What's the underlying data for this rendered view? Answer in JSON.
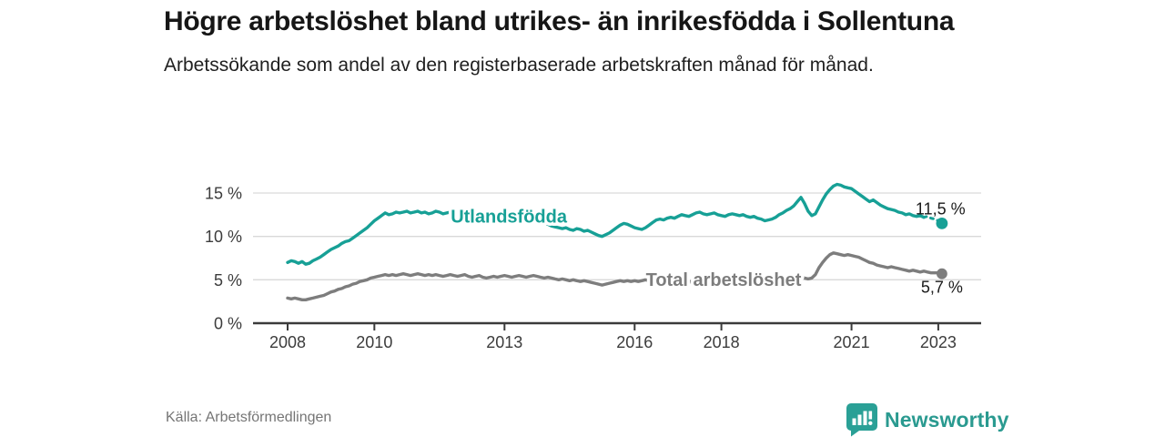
{
  "header": {
    "title": "Högre arbetslöshet bland utrikes- än inrikesfödda i Sollentuna",
    "subtitle": "Arbetssökande som andel av den registerbaserade arbetskraften månad för månad."
  },
  "footer": {
    "source": "Källa: Arbetsförmedlingen",
    "brand": "Newsworthy"
  },
  "colors": {
    "accent_teal": "#17a096",
    "line_gray": "#7d7d7d",
    "brand_teal": "#2a9a90",
    "grid": "#d9d9d9",
    "axis": "#3b3b3b",
    "annotation_text": "#1a1a1a"
  },
  "chart_data": {
    "type": "line",
    "x_start_year": 2008,
    "x_step_months": 1,
    "xticks": [
      "2008",
      "2010",
      "2013",
      "2016",
      "2018",
      "2021",
      "2023"
    ],
    "xtick_years": [
      2008,
      2010,
      2013,
      2016,
      2018,
      2021,
      2023
    ],
    "yticks": [
      {
        "value": 0,
        "label": "0 %"
      },
      {
        "value": 5,
        "label": "5 %"
      },
      {
        "value": 10,
        "label": "10 %"
      },
      {
        "value": 15,
        "label": "15 %"
      }
    ],
    "ylim": [
      0,
      16.5
    ],
    "grid": "horizontal-only",
    "legend_position": "inline-labels",
    "series": [
      {
        "name": "Utlandsfödda",
        "color": "#17a096",
        "end_label": "11,5 %",
        "end_value": 11.5,
        "dashed_tail_from": 176,
        "inline_label": {
          "text": "Utlandsfödda",
          "year": 2013.1,
          "value": 12.35
        },
        "values": [
          7.0,
          7.2,
          7.1,
          6.9,
          7.1,
          6.8,
          6.9,
          7.2,
          7.4,
          7.6,
          7.9,
          8.2,
          8.5,
          8.7,
          8.9,
          9.2,
          9.4,
          9.5,
          9.8,
          10.1,
          10.4,
          10.7,
          11.0,
          11.4,
          11.8,
          12.1,
          12.4,
          12.7,
          12.5,
          12.6,
          12.8,
          12.7,
          12.8,
          12.9,
          12.7,
          12.8,
          12.9,
          12.7,
          12.8,
          12.6,
          12.7,
          12.9,
          12.8,
          12.6,
          12.7,
          12.8,
          12.7,
          12.6,
          12.7,
          12.8,
          12.6,
          12.5,
          12.6,
          12.7,
          12.5,
          12.4,
          12.5,
          12.6,
          12.4,
          12.5,
          12.4,
          12.3,
          12.4,
          12.2,
          12.1,
          12.2,
          12.0,
          11.9,
          11.8,
          11.7,
          11.6,
          11.5,
          11.4,
          11.2,
          11.1,
          11.0,
          10.9,
          11.0,
          10.8,
          10.7,
          10.9,
          10.8,
          10.6,
          10.7,
          10.5,
          10.3,
          10.1,
          10.0,
          10.2,
          10.4,
          10.7,
          11.0,
          11.3,
          11.5,
          11.4,
          11.2,
          11.0,
          10.9,
          10.8,
          11.0,
          11.3,
          11.6,
          11.9,
          12.0,
          11.9,
          12.1,
          12.2,
          12.1,
          12.3,
          12.5,
          12.4,
          12.3,
          12.5,
          12.7,
          12.8,
          12.6,
          12.5,
          12.6,
          12.7,
          12.5,
          12.4,
          12.3,
          12.5,
          12.6,
          12.5,
          12.4,
          12.5,
          12.3,
          12.2,
          12.3,
          12.1,
          12.0,
          11.8,
          11.9,
          12.0,
          12.2,
          12.5,
          12.7,
          13.0,
          13.2,
          13.5,
          14.0,
          14.5,
          13.8,
          12.9,
          12.4,
          12.6,
          13.4,
          14.2,
          14.9,
          15.4,
          15.8,
          16.0,
          15.9,
          15.7,
          15.6,
          15.5,
          15.2,
          14.9,
          14.6,
          14.3,
          14.0,
          14.2,
          13.9,
          13.6,
          13.4,
          13.2,
          13.1,
          13.0,
          12.8,
          12.7,
          12.5,
          12.6,
          12.4,
          12.3,
          12.4,
          12.2,
          12.3,
          12.1,
          12.0,
          11.8,
          11.5
        ]
      },
      {
        "name": "Total arbetslöshet",
        "color": "#7d7d7d",
        "end_label": "5,7 %",
        "end_value": 5.7,
        "dashed_tail_from": null,
        "inline_label": {
          "text": "Total arbetslöshet",
          "year": 2018.05,
          "value": 5.05
        },
        "values": [
          2.9,
          2.8,
          2.9,
          2.8,
          2.7,
          2.7,
          2.8,
          2.9,
          3.0,
          3.1,
          3.2,
          3.4,
          3.6,
          3.7,
          3.9,
          4.0,
          4.2,
          4.3,
          4.5,
          4.6,
          4.8,
          4.9,
          5.0,
          5.2,
          5.3,
          5.4,
          5.5,
          5.6,
          5.5,
          5.6,
          5.5,
          5.6,
          5.7,
          5.6,
          5.5,
          5.6,
          5.7,
          5.6,
          5.5,
          5.6,
          5.5,
          5.6,
          5.5,
          5.4,
          5.5,
          5.6,
          5.5,
          5.4,
          5.5,
          5.6,
          5.4,
          5.3,
          5.4,
          5.5,
          5.3,
          5.2,
          5.3,
          5.4,
          5.3,
          5.4,
          5.5,
          5.4,
          5.3,
          5.4,
          5.5,
          5.4,
          5.3,
          5.4,
          5.5,
          5.4,
          5.3,
          5.2,
          5.3,
          5.2,
          5.1,
          5.0,
          5.1,
          5.0,
          4.9,
          5.0,
          4.9,
          4.8,
          4.9,
          4.8,
          4.7,
          4.6,
          4.5,
          4.4,
          4.5,
          4.6,
          4.7,
          4.8,
          4.9,
          4.8,
          4.9,
          4.8,
          4.9,
          4.8,
          4.9,
          5.0,
          4.9,
          4.8,
          4.9,
          4.8,
          4.7,
          4.8,
          4.7,
          4.6,
          4.7,
          4.6,
          4.7,
          4.8,
          4.7,
          4.6,
          4.7,
          4.6,
          4.5,
          4.6,
          4.5,
          4.6,
          4.5,
          4.4,
          4.5,
          4.6,
          4.5,
          4.4,
          4.5,
          4.4,
          4.3,
          4.4,
          4.5,
          4.4,
          4.3,
          4.4,
          4.5,
          4.6,
          4.7,
          4.8,
          4.9,
          5.0,
          5.1,
          5.2,
          5.3,
          5.2,
          5.1,
          5.2,
          5.6,
          6.4,
          7.0,
          7.5,
          7.9,
          8.1,
          8.0,
          7.9,
          7.8,
          7.9,
          7.8,
          7.7,
          7.6,
          7.4,
          7.2,
          7.0,
          6.9,
          6.7,
          6.6,
          6.5,
          6.4,
          6.5,
          6.4,
          6.3,
          6.2,
          6.1,
          6.0,
          6.1,
          6.0,
          5.9,
          6.0,
          5.9,
          5.8,
          5.8,
          5.8,
          5.7
        ]
      }
    ]
  }
}
